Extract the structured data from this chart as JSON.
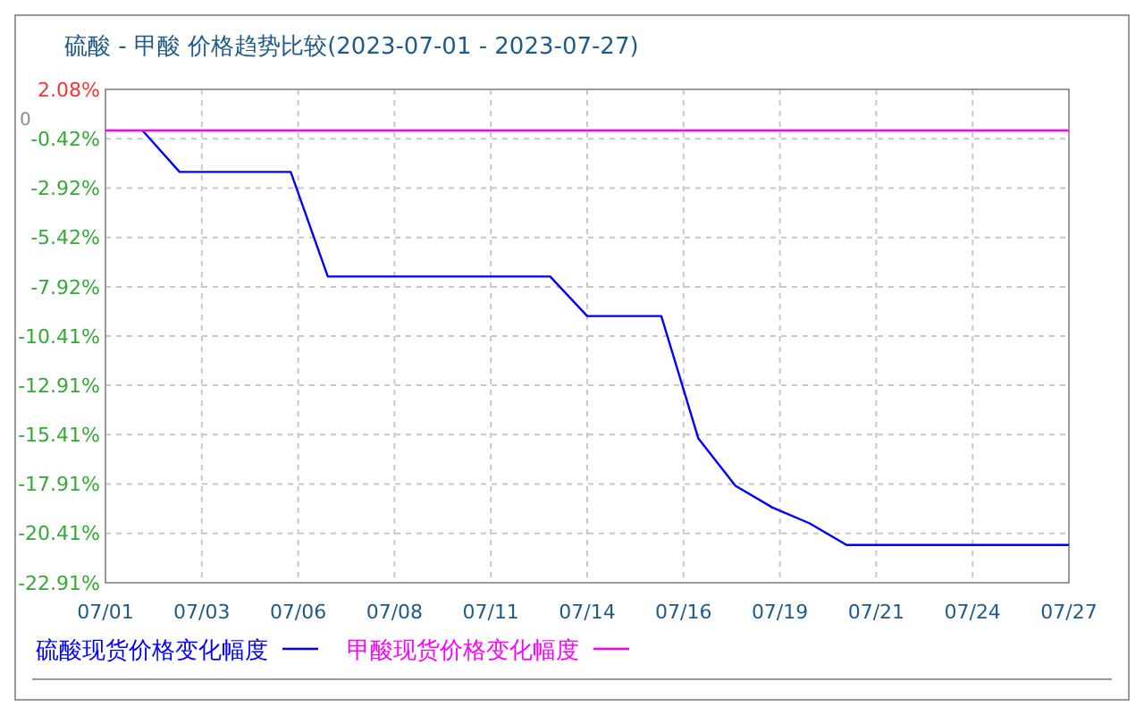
{
  "chart_data": {
    "type": "line",
    "title": "硫酸 - 甲酸 价格趋势比较(2023-07-01 - 2023-07-27)",
    "xlim": [
      "2023-07-01",
      "2023-07-27"
    ],
    "xticks": [
      {
        "value": "2023-07-01",
        "label": "07/01"
      },
      {
        "value": "2023-07-03T14:24",
        "label": "07/03"
      },
      {
        "value": "2023-07-06T04:48",
        "label": "07/06"
      },
      {
        "value": "2023-07-08T19:12",
        "label": "07/08"
      },
      {
        "value": "2023-07-11T09:36",
        "label": "07/11"
      },
      {
        "value": "2023-07-14",
        "label": "07/14"
      },
      {
        "value": "2023-07-16T14:24",
        "label": "07/16"
      },
      {
        "value": "2023-07-19T04:48",
        "label": "07/19"
      },
      {
        "value": "2023-07-21T19:12",
        "label": "07/21"
      },
      {
        "value": "2023-07-24T09:36",
        "label": "07/24"
      },
      {
        "value": "2023-07-27",
        "label": "07/27"
      }
    ],
    "ylim": [
      -22.91,
      2.08
    ],
    "yticks": [
      {
        "value": 2.08,
        "label": "2.08%"
      },
      {
        "value": -0.42,
        "label": "-0.42%"
      },
      {
        "value": -2.92,
        "label": "-2.92%"
      },
      {
        "value": -5.42,
        "label": "-5.42%"
      },
      {
        "value": -7.92,
        "label": "-7.92%"
      },
      {
        "value": -10.41,
        "label": "-10.41%"
      },
      {
        "value": -12.91,
        "label": "-12.91%"
      },
      {
        "value": -15.41,
        "label": "-15.41%"
      },
      {
        "value": -17.91,
        "label": "-17.91%"
      },
      {
        "value": -20.41,
        "label": "-20.41%"
      },
      {
        "value": -22.91,
        "label": "-22.91%"
      }
    ],
    "grid": true,
    "legend": "bottom left",
    "line_style": "solid",
    "marker": "none",
    "annotations": [
      "0"
    ],
    "series": [
      {
        "name": "硫酸现货价格变化幅度",
        "color": "#0000ff",
        "x": [
          "2023-07-02",
          "2023-07-03",
          "2023-07-06",
          "2023-07-07",
          "2023-07-13",
          "2023-07-14",
          "2023-07-16",
          "2023-07-17",
          "2023-07-18",
          "2023-07-19",
          "2023-07-20",
          "2023-07-21",
          "2023-07-27"
        ],
        "values": [
          0,
          -2.1,
          -2.1,
          -7.4,
          -7.4,
          -9.4,
          -9.4,
          -15.6,
          -18,
          -19.1,
          -19.9,
          -21,
          -21
        ]
      },
      {
        "name": "甲酸现货价格变化幅度",
        "color": "#ff00ff",
        "x": [
          "2023-07-01",
          "2023-07-27"
        ],
        "values": [
          0,
          0
        ]
      }
    ]
  }
}
